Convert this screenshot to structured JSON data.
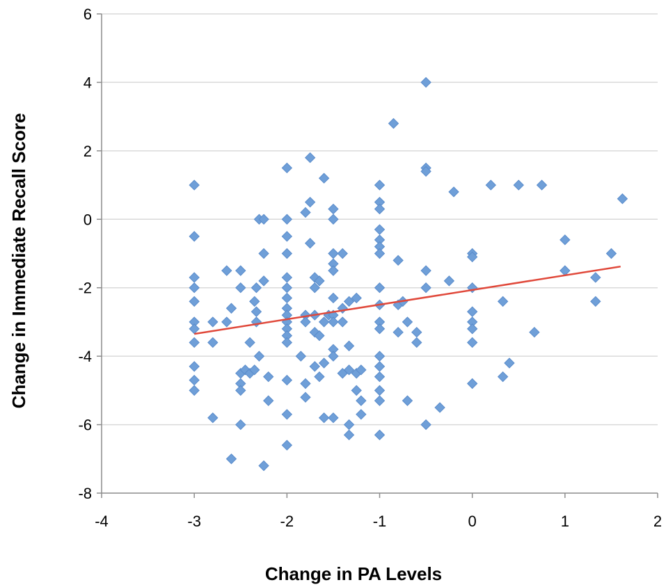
{
  "chart_data": {
    "type": "scatter",
    "title": "",
    "xlabel": "Change in PA Levels",
    "ylabel": "Change in Immediate Recall Score",
    "xlim": [
      -4,
      2
    ],
    "ylim": [
      -8,
      6
    ],
    "xticks": [
      -4,
      -3,
      -2,
      -1,
      0,
      1,
      2
    ],
    "yticks": [
      -8,
      -6,
      -4,
      -2,
      0,
      2,
      4,
      6
    ],
    "grid": "horizontal",
    "legend": "none",
    "marker_color": "#6f9fd8",
    "trendline_color": "#e0483a",
    "trendline": {
      "x": [
        -3.0,
        1.6
      ],
      "y": [
        -3.35,
        -1.38
      ]
    },
    "points": [
      [
        -3,
        1
      ],
      [
        -3,
        -0.5
      ],
      [
        -3,
        -1.7
      ],
      [
        -3,
        -2
      ],
      [
        -3,
        -2.4
      ],
      [
        -3,
        -3
      ],
      [
        -3,
        -3.2
      ],
      [
        -3,
        -3.6
      ],
      [
        -3,
        -4.3
      ],
      [
        -3,
        -4.7
      ],
      [
        -3,
        -5
      ],
      [
        -2.8,
        -3
      ],
      [
        -2.8,
        -3.6
      ],
      [
        -2.8,
        -5.8
      ],
      [
        -2.65,
        -1.5
      ],
      [
        -2.65,
        -3
      ],
      [
        -2.6,
        -2.6
      ],
      [
        -2.6,
        -7
      ],
      [
        -2.5,
        -1.5
      ],
      [
        -2.5,
        -2
      ],
      [
        -2.5,
        -4.5
      ],
      [
        -2.5,
        -4.8
      ],
      [
        -2.5,
        -5
      ],
      [
        -2.5,
        -6
      ],
      [
        -2.45,
        -4.4
      ],
      [
        -2.4,
        -3.6
      ],
      [
        -2.4,
        -4.5
      ],
      [
        -2.35,
        -4.4
      ],
      [
        -2.35,
        -2.4
      ],
      [
        -2.33,
        -3
      ],
      [
        -2.33,
        -2.7
      ],
      [
        -2.33,
        -2
      ],
      [
        -2.3,
        0
      ],
      [
        -2.3,
        -4
      ],
      [
        -2.25,
        0
      ],
      [
        -2.25,
        -1
      ],
      [
        -2.25,
        -1.8
      ],
      [
        -2.25,
        -7.2
      ],
      [
        -2.2,
        -4.6
      ],
      [
        -2.2,
        -5.3
      ],
      [
        -2,
        1.5
      ],
      [
        -2,
        0
      ],
      [
        -2,
        -0.5
      ],
      [
        -2,
        -1
      ],
      [
        -2,
        -1.7
      ],
      [
        -2,
        -2
      ],
      [
        -2,
        -2.3
      ],
      [
        -2,
        -2.6
      ],
      [
        -2,
        -2.8
      ],
      [
        -2,
        -3
      ],
      [
        -2,
        -3.2
      ],
      [
        -2,
        -3.4
      ],
      [
        -2,
        -3.6
      ],
      [
        -2,
        -4.7
      ],
      [
        -2,
        -5.7
      ],
      [
        -2,
        -6.6
      ],
      [
        -1.85,
        -4
      ],
      [
        -1.8,
        0.2
      ],
      [
        -1.8,
        -2.8
      ],
      [
        -1.8,
        -3
      ],
      [
        -1.8,
        -4.8
      ],
      [
        -1.8,
        -5.2
      ],
      [
        -1.75,
        1.8
      ],
      [
        -1.75,
        0.5
      ],
      [
        -1.75,
        -0.7
      ],
      [
        -1.7,
        -1.7
      ],
      [
        -1.7,
        -2
      ],
      [
        -1.7,
        -2.8
      ],
      [
        -1.7,
        -3.3
      ],
      [
        -1.7,
        -4.3
      ],
      [
        -1.65,
        -1.8
      ],
      [
        -1.65,
        -4.6
      ],
      [
        -1.65,
        -3.4
      ],
      [
        -1.6,
        1.2
      ],
      [
        -1.6,
        -3
      ],
      [
        -1.6,
        -4.2
      ],
      [
        -1.6,
        -5.8
      ],
      [
        -1.55,
        -2.8
      ],
      [
        -1.5,
        0.3
      ],
      [
        -1.5,
        0
      ],
      [
        -1.5,
        -1
      ],
      [
        -1.5,
        -1.3
      ],
      [
        -1.5,
        -1.5
      ],
      [
        -1.5,
        -2.3
      ],
      [
        -1.5,
        -2.8
      ],
      [
        -1.5,
        -3
      ],
      [
        -1.5,
        -3.8
      ],
      [
        -1.5,
        -4
      ],
      [
        -1.5,
        -5.8
      ],
      [
        -1.4,
        -1
      ],
      [
        -1.4,
        -2.6
      ],
      [
        -1.4,
        -3
      ],
      [
        -1.4,
        -4.5
      ],
      [
        -1.33,
        -2.4
      ],
      [
        -1.33,
        -3.7
      ],
      [
        -1.33,
        -4.4
      ],
      [
        -1.33,
        -6
      ],
      [
        -1.33,
        -6.3
      ],
      [
        -1.25,
        -2.3
      ],
      [
        -1.25,
        -4.5
      ],
      [
        -1.25,
        -5
      ],
      [
        -1.2,
        -4.4
      ],
      [
        -1.2,
        -5.3
      ],
      [
        -1.2,
        -5.7
      ],
      [
        -1,
        1
      ],
      [
        -1,
        0.5
      ],
      [
        -1,
        0.3
      ],
      [
        -1,
        -0.3
      ],
      [
        -1,
        -0.6
      ],
      [
        -1,
        -0.8
      ],
      [
        -1,
        -1
      ],
      [
        -1,
        -2
      ],
      [
        -1,
        -2.5
      ],
      [
        -1,
        -3
      ],
      [
        -1,
        -3.2
      ],
      [
        -1,
        -4
      ],
      [
        -1,
        -4.3
      ],
      [
        -1,
        -4.6
      ],
      [
        -1,
        -5
      ],
      [
        -1,
        -5.3
      ],
      [
        -1,
        -6.3
      ],
      [
        -0.85,
        2.8
      ],
      [
        -0.8,
        -1.2
      ],
      [
        -0.8,
        -2.5
      ],
      [
        -0.8,
        -3.3
      ],
      [
        -0.75,
        -2.4
      ],
      [
        -0.7,
        -3
      ],
      [
        -0.7,
        -5.3
      ],
      [
        -0.6,
        -3.3
      ],
      [
        -0.6,
        -3.6
      ],
      [
        -0.5,
        4
      ],
      [
        -0.5,
        1.5
      ],
      [
        -0.5,
        1.4
      ],
      [
        -0.5,
        -1.5
      ],
      [
        -0.5,
        -2
      ],
      [
        -0.5,
        -6
      ],
      [
        -0.35,
        -5.5
      ],
      [
        -0.25,
        -1.8
      ],
      [
        -0.2,
        0.8
      ],
      [
        0,
        -1
      ],
      [
        0,
        -1.1
      ],
      [
        0,
        -2
      ],
      [
        0,
        -2.7
      ],
      [
        0,
        -3
      ],
      [
        0,
        -3.2
      ],
      [
        0,
        -3.6
      ],
      [
        0,
        -4.8
      ],
      [
        0.2,
        1
      ],
      [
        0.33,
        -2.4
      ],
      [
        0.33,
        -4.6
      ],
      [
        0.4,
        -4.2
      ],
      [
        0.5,
        1
      ],
      [
        0.67,
        -3.3
      ],
      [
        0.75,
        1
      ],
      [
        1,
        -0.6
      ],
      [
        1,
        -1.5
      ],
      [
        1.33,
        -1.7
      ],
      [
        1.33,
        -2.4
      ],
      [
        1.5,
        -1
      ],
      [
        1.62,
        0.6
      ]
    ]
  }
}
